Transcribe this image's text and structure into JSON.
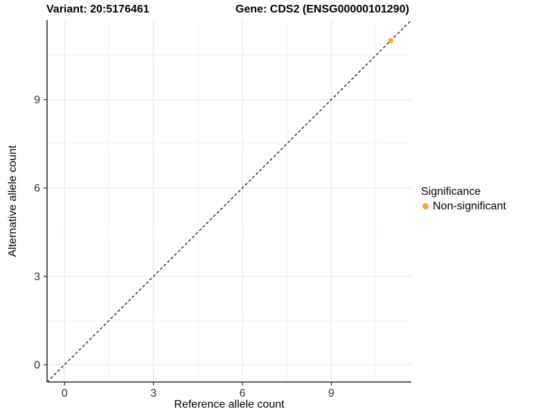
{
  "chart_data": {
    "type": "scatter",
    "titles": [
      "Variant: 20:5176461",
      "Gene: CDS2 (ENSG00000101290)"
    ],
    "xlabel": "Reference allele count",
    "ylabel": "Alternative allele count",
    "xlim": [
      -0.59,
      11.7
    ],
    "ylim": [
      -0.59,
      11.7
    ],
    "xticks": [
      0,
      3,
      6,
      9
    ],
    "yticks": [
      0,
      3,
      6,
      9
    ],
    "xminor": [
      1.5,
      4.5,
      7.5,
      10.5
    ],
    "yminor": [
      1.5,
      4.5,
      7.5,
      10.5
    ],
    "grid": "on",
    "identity_line": {
      "style": "dashed",
      "slope": 1,
      "intercept": 0
    },
    "series": [
      {
        "name": "Non-significant",
        "color": "#FAA43A",
        "points": [
          {
            "x": 11,
            "y": 11
          }
        ]
      }
    ],
    "legend": {
      "title": "Significance",
      "position": "right",
      "items": [
        {
          "label": "Non-significant",
          "color": "#FAA43A"
        }
      ]
    }
  },
  "colors": {
    "background": "#ffffff",
    "grid_major": "#E6E6E6",
    "grid_minor": "#F1F1F1",
    "axis_line": "#4a4a4a",
    "tick_mark": "#333333",
    "tick_label": "#333333",
    "identity_line": "#111111",
    "point": "#FAA43A"
  }
}
